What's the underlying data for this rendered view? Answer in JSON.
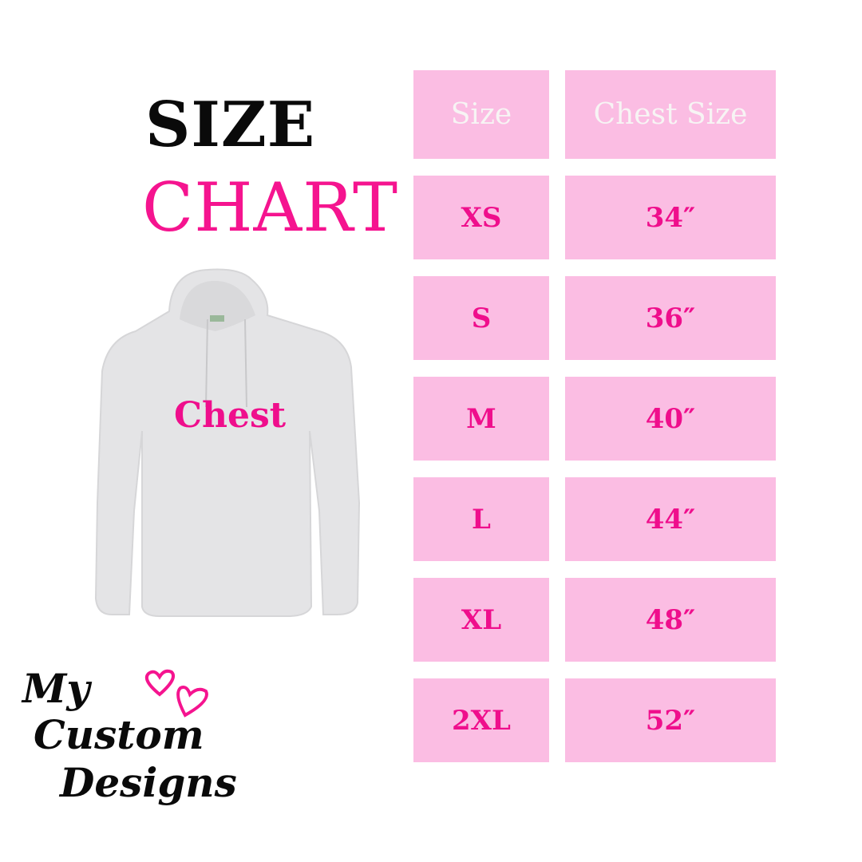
{
  "title": {
    "line1": "SIZE",
    "line2": "CHART"
  },
  "garment": {
    "label": "Chest"
  },
  "table": {
    "headers": [
      "Size",
      "Chest Size"
    ],
    "rows": [
      {
        "size": "XS",
        "chest": "34″"
      },
      {
        "size": "S",
        "chest": "36″"
      },
      {
        "size": "M",
        "chest": "40″"
      },
      {
        "size": "L",
        "chest": "44″"
      },
      {
        "size": "XL",
        "chest": "48″"
      },
      {
        "size": "2XL",
        "chest": "52″"
      }
    ]
  },
  "logo": {
    "line1": "My",
    "line2": "Custom",
    "line3": "Designs"
  },
  "colors": {
    "accent": "#f5148f",
    "cell": "#fbbde3",
    "hoodie": "#e4e4e6"
  }
}
